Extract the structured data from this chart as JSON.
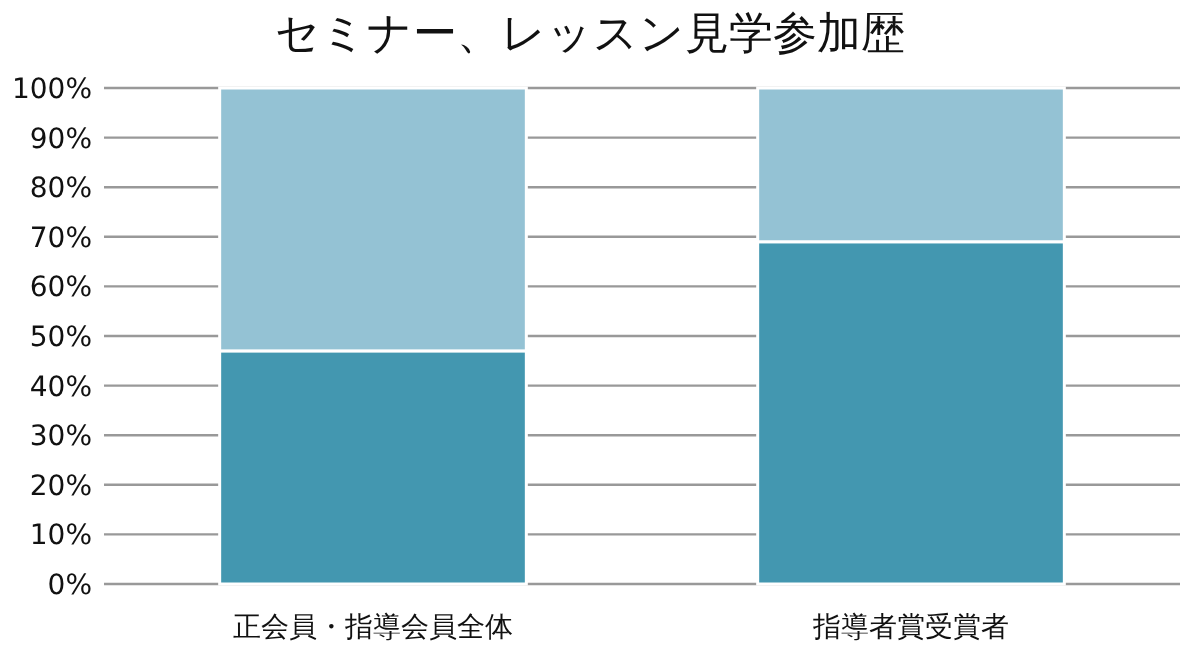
{
  "chart_data": {
    "type": "bar",
    "title": "セミナー、レッスン見学参加歴",
    "stacked": true,
    "categories": [
      "正会員・指導会員全体",
      "指導者賞受賞者"
    ],
    "series": [
      {
        "color": "#4397b0",
        "values": [
          47,
          69
        ]
      },
      {
        "color": "#94c2d4",
        "values": [
          53,
          31
        ]
      }
    ],
    "ylim": [
      0,
      100
    ],
    "yticks": [
      {
        "value": 0,
        "label": "0%"
      },
      {
        "value": 10,
        "label": "10%"
      },
      {
        "value": 20,
        "label": "20%"
      },
      {
        "value": 30,
        "label": "30%"
      },
      {
        "value": 40,
        "label": "40%"
      },
      {
        "value": 50,
        "label": "50%"
      },
      {
        "value": 60,
        "label": "60%"
      },
      {
        "value": 70,
        "label": "70%"
      },
      {
        "value": 80,
        "label": "80%"
      },
      {
        "value": 90,
        "label": "90%"
      },
      {
        "value": 100,
        "label": "100%"
      }
    ],
    "grid": "y"
  }
}
